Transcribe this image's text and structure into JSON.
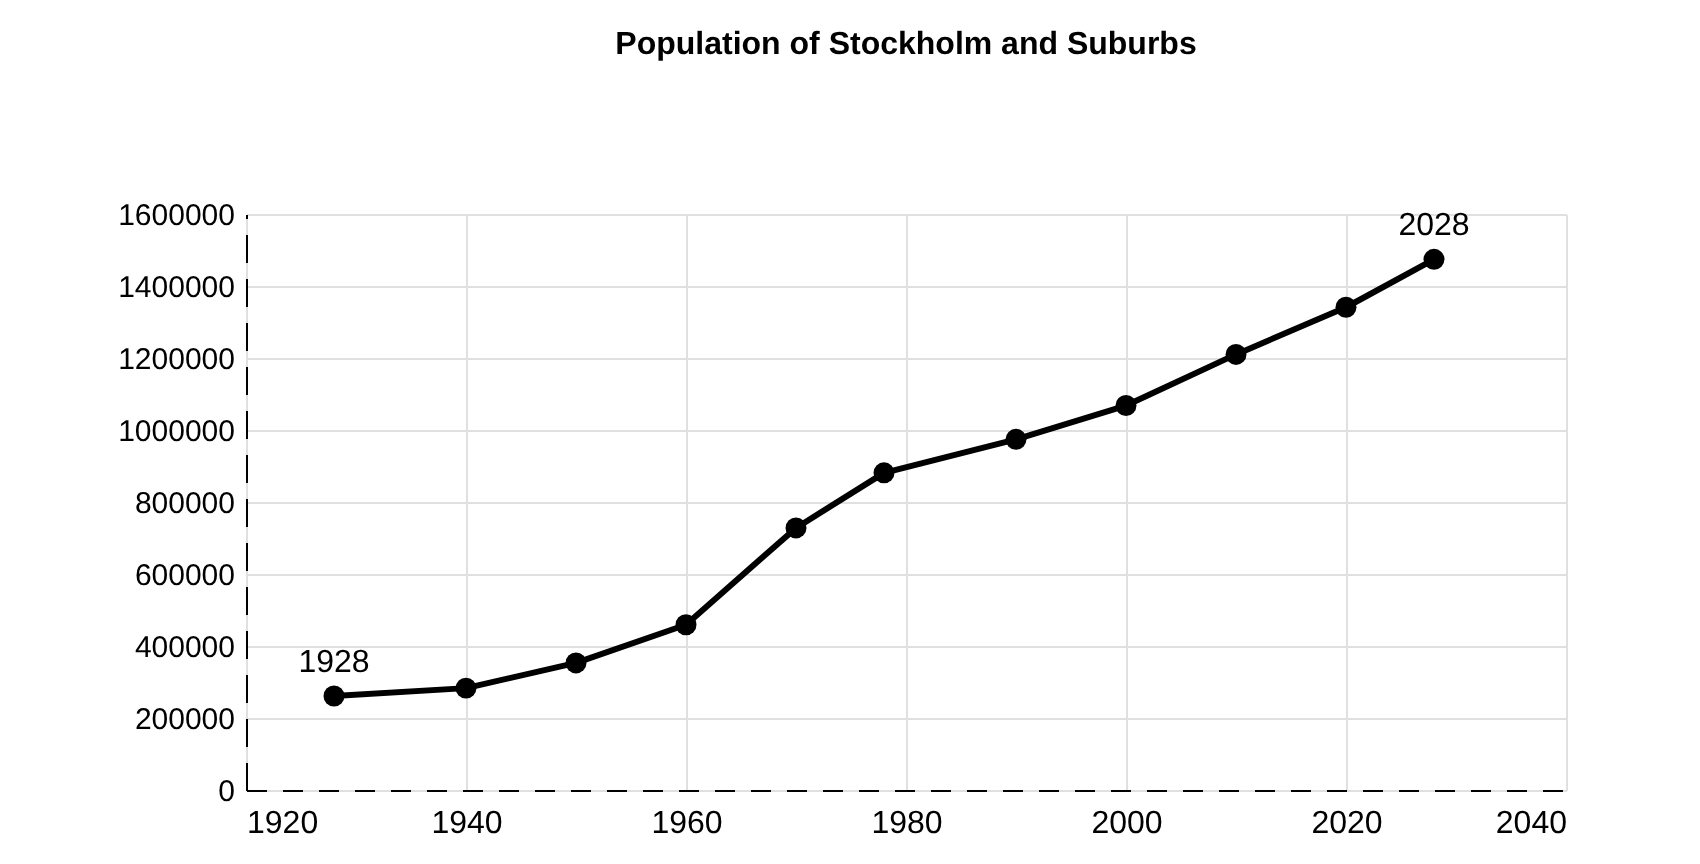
{
  "chart_data": {
    "type": "line",
    "title": "Population of Stockholm and Suburbs",
    "x": [
      1928,
      1940,
      1950,
      1960,
      1970,
      1978,
      1990,
      2000,
      2010,
      2020,
      2028
    ],
    "series": [
      {
        "color": "#000000",
        "values": [
          261000,
          283000,
          353000,
          459000,
          728000,
          881000,
          974000,
          1068000,
          1210000,
          1341000,
          1474000
        ]
      }
    ],
    "xlim": [
      1920,
      2040
    ],
    "xticks": [
      1920,
      1940,
      1960,
      1980,
      2000,
      2020,
      2040
    ],
    "ylim": [
      0,
      1600000
    ],
    "yticks": [
      0,
      200000,
      400000,
      600000,
      800000,
      1000000,
      1200000,
      1400000,
      1600000
    ],
    "annotations": [
      {
        "text": "1928",
        "x": 1928,
        "y": 261000
      },
      {
        "text": "2028",
        "x": 2028,
        "y": 1474000
      }
    ],
    "grid": true,
    "marker": "circle",
    "line_style": "solid",
    "legend": false
  }
}
